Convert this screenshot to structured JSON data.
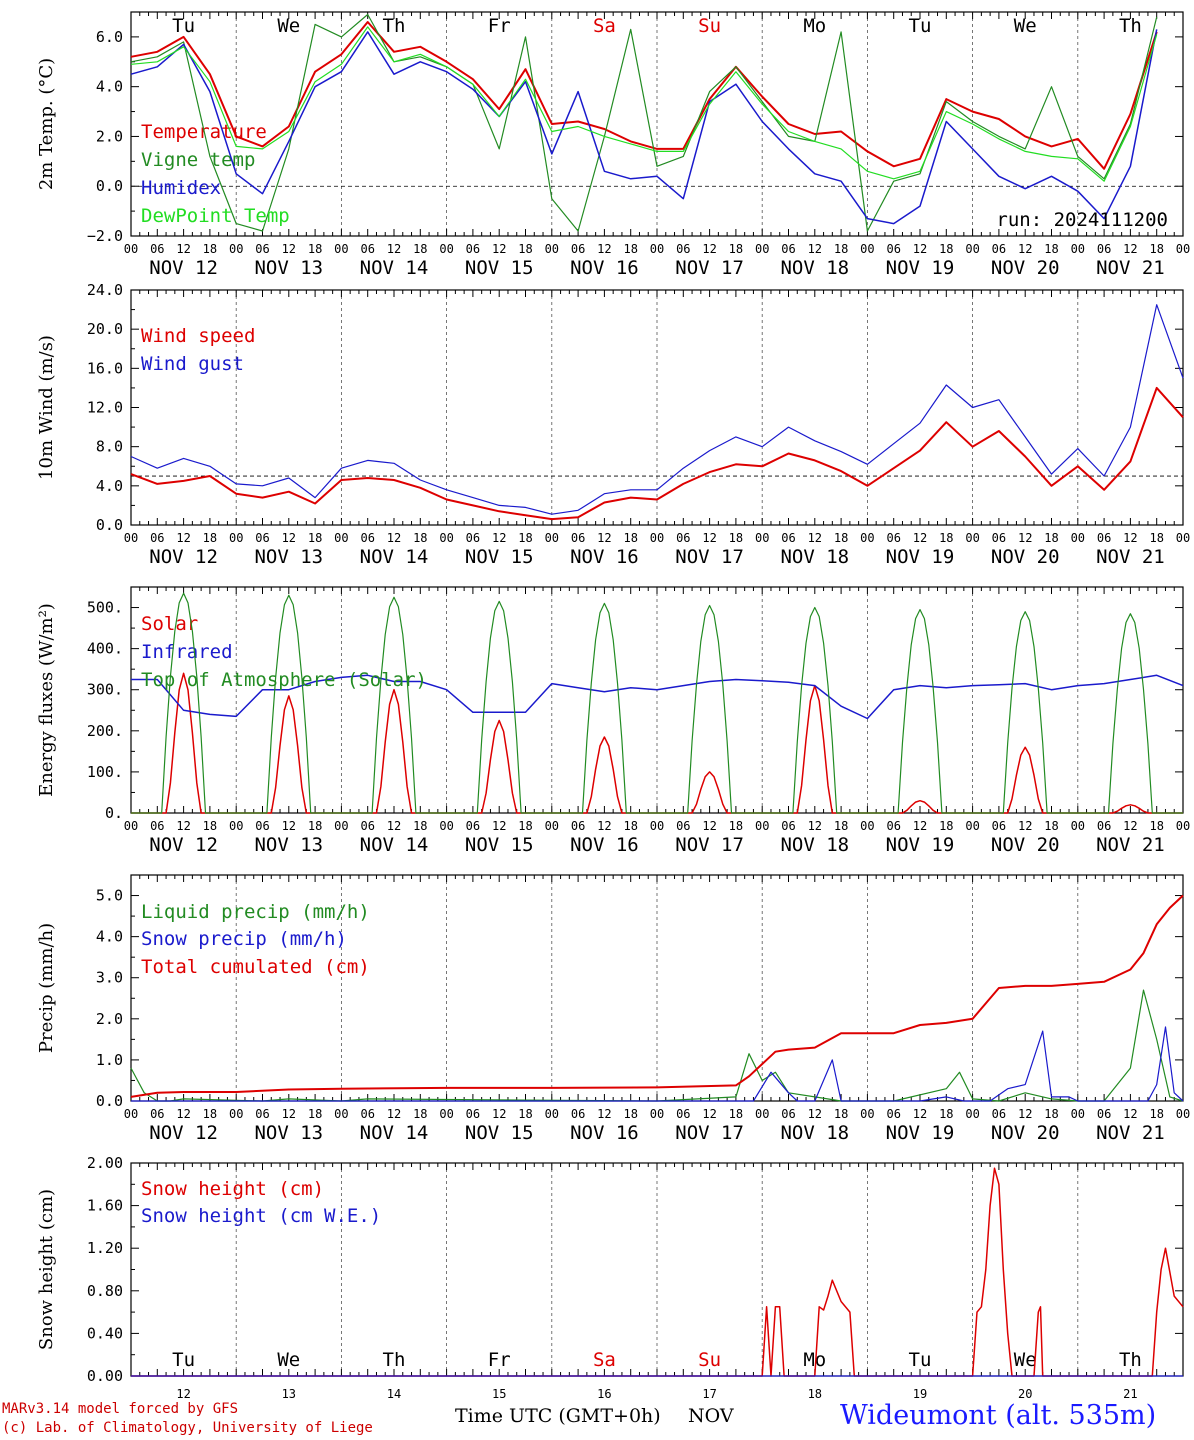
{
  "footer": {
    "model_line": "MARv3.14 model forced by GFS",
    "credit_line": "(c) Lab. of Climatology, University of Liege",
    "time_axis_label": "Time UTC (GMT+0h)",
    "month_label": "NOV",
    "station": "Wideumont (alt. 535m)"
  },
  "time_axis": {
    "hour_ticks": [
      "00",
      "06",
      "12",
      "18"
    ],
    "end_tick": "00",
    "dates": [
      "NOV 12",
      "NOV 13",
      "NOV 14",
      "NOV 15",
      "NOV 16",
      "NOV 17",
      "NOV 18",
      "NOV 19",
      "NOV 20",
      "NOV 21"
    ],
    "day_numbers": [
      "12",
      "13",
      "14",
      "15",
      "16",
      "17",
      "18",
      "19",
      "20",
      "21"
    ],
    "day_names": [
      "Tu",
      "We",
      "Th",
      "Fr",
      "Sa",
      "Su",
      "Mo",
      "Tu",
      "We",
      "Th"
    ],
    "day_name_colors": [
      "#000000",
      "#000000",
      "#000000",
      "#000000",
      "#dd0000",
      "#dd0000",
      "#000000",
      "#000000",
      "#000000",
      "#000000"
    ]
  },
  "chart_data": [
    {
      "type": "line",
      "ylabel": "2m Temp. (°C)",
      "ylim": [
        -2.0,
        7.0
      ],
      "yticks": [
        -2.0,
        0.0,
        2.0,
        4.0,
        6.0
      ],
      "ytick_labels": [
        "−2.0",
        "0.0",
        "2.0",
        "4.0",
        "6.0"
      ],
      "reference_line": 0.0,
      "run_label": "run: 2024111200",
      "show_day_names": true,
      "x_hours": [
        0,
        6,
        12,
        18,
        24,
        30,
        36,
        42,
        48,
        54,
        60,
        66,
        72,
        78,
        84,
        90,
        96,
        102,
        108,
        114,
        120,
        126,
        132,
        138,
        144,
        150,
        156,
        162,
        168,
        174,
        180,
        186,
        192,
        198,
        204,
        210,
        216,
        222,
        228,
        234
      ],
      "series": [
        {
          "name": "Temperature",
          "color": "#dd0000",
          "width": 2.0,
          "values": [
            5.2,
            5.4,
            6.0,
            4.5,
            2.0,
            1.6,
            2.4,
            4.6,
            5.3,
            6.6,
            5.4,
            5.6,
            5.0,
            4.3,
            3.1,
            4.7,
            2.5,
            2.6,
            2.3,
            1.8,
            1.5,
            1.5,
            3.5,
            4.8,
            3.6,
            2.5,
            2.1,
            2.2,
            1.4,
            0.8,
            1.1,
            3.5,
            3.0,
            2.7,
            2.0,
            1.6,
            1.9,
            0.7,
            2.9,
            6.2
          ]
        },
        {
          "name": "Vigne temp",
          "color": "#228b22",
          "width": 1.2,
          "values": [
            5.0,
            5.2,
            5.8,
            1.2,
            -1.5,
            -1.8,
            1.5,
            6.5,
            6.0,
            6.9,
            5.0,
            5.2,
            4.8,
            4.1,
            1.5,
            6.0,
            -0.5,
            -1.8,
            2.0,
            6.3,
            0.8,
            1.2,
            3.8,
            4.8,
            3.4,
            2.0,
            1.8,
            6.2,
            -1.8,
            0.2,
            0.5,
            3.4,
            2.6,
            2.0,
            1.5,
            4.0,
            1.2,
            0.3,
            2.5,
            6.8
          ]
        },
        {
          "name": "Humidex",
          "color": "#1a1acc",
          "width": 1.5,
          "values": [
            4.5,
            4.8,
            5.7,
            3.8,
            0.5,
            -0.3,
            1.8,
            4.0,
            4.6,
            6.2,
            4.5,
            5.0,
            4.6,
            3.9,
            2.8,
            4.2,
            1.3,
            3.8,
            0.6,
            0.3,
            0.4,
            -0.5,
            3.4,
            4.1,
            2.6,
            1.5,
            0.5,
            0.2,
            -1.3,
            -1.5,
            -0.8,
            2.6,
            1.5,
            0.4,
            -0.1,
            0.4,
            -0.2,
            -1.3,
            0.8,
            6.3
          ]
        },
        {
          "name": "DewPoint Temp",
          "color": "#22dd22",
          "width": 1.2,
          "values": [
            4.9,
            5.0,
            5.6,
            4.2,
            1.6,
            1.5,
            2.2,
            4.2,
            4.9,
            6.4,
            5.0,
            5.3,
            4.8,
            4.1,
            2.8,
            4.3,
            2.2,
            2.4,
            2.0,
            1.7,
            1.4,
            1.4,
            3.3,
            4.6,
            3.3,
            2.2,
            1.8,
            1.5,
            0.6,
            0.3,
            0.6,
            3.0,
            2.5,
            1.9,
            1.4,
            1.2,
            1.1,
            0.2,
            2.4,
            6.1
          ]
        }
      ]
    },
    {
      "type": "line",
      "ylabel": "10m Wind (m/s)",
      "ylim": [
        0.0,
        24.0
      ],
      "yticks": [
        0.0,
        4.0,
        8.0,
        12.0,
        16.0,
        20.0,
        24.0
      ],
      "ytick_labels": [
        "0.0",
        "4.0",
        "8.0",
        "12.0",
        "16.0",
        "20.0",
        "24.0"
      ],
      "reference_line": 5.0,
      "show_day_names": false,
      "x_hours": [
        0,
        6,
        12,
        18,
        24,
        30,
        36,
        42,
        48,
        54,
        60,
        66,
        72,
        78,
        84,
        90,
        96,
        102,
        108,
        114,
        120,
        126,
        132,
        138,
        144,
        150,
        156,
        162,
        168,
        174,
        180,
        186,
        192,
        198,
        204,
        210,
        216,
        222,
        228,
        234,
        240
      ],
      "series": [
        {
          "name": "Wind speed",
          "color": "#dd0000",
          "width": 2.0,
          "values": [
            5.2,
            4.2,
            4.5,
            5.0,
            3.2,
            2.8,
            3.4,
            2.2,
            4.6,
            4.8,
            4.6,
            3.8,
            2.6,
            2.0,
            1.4,
            1.0,
            0.6,
            0.8,
            2.3,
            2.8,
            2.6,
            4.2,
            5.4,
            6.2,
            6.0,
            7.3,
            6.6,
            5.5,
            4.0,
            5.8,
            7.6,
            10.5,
            8.0,
            9.6,
            7.0,
            4.0,
            6.0,
            3.6,
            6.5,
            14.0,
            11.0
          ]
        },
        {
          "name": "Wind gust",
          "color": "#1a1acc",
          "width": 1.2,
          "values": [
            7.0,
            5.8,
            6.8,
            6.0,
            4.2,
            4.0,
            4.8,
            2.8,
            5.8,
            6.6,
            6.3,
            4.6,
            3.6,
            2.8,
            2.0,
            1.8,
            1.1,
            1.5,
            3.2,
            3.6,
            3.6,
            5.8,
            7.6,
            9.0,
            8.0,
            10.0,
            8.6,
            7.5,
            6.2,
            8.3,
            10.4,
            14.3,
            12.0,
            12.8,
            9.0,
            5.2,
            7.8,
            5.0,
            10.0,
            22.5,
            15.0
          ]
        }
      ]
    },
    {
      "type": "line",
      "ylabel": "Energy fluxes (W/m²)",
      "ylim": [
        0,
        550
      ],
      "yticks": [
        0,
        100,
        200,
        300,
        400,
        500
      ],
      "ytick_labels": [
        "0.",
        "100.",
        "200.",
        "300.",
        "400.",
        "500."
      ],
      "show_day_names": false,
      "day_peaks_hour_offset": 12,
      "series": [
        {
          "name": "Solar",
          "color": "#dd0000",
          "width": 1.5,
          "daily_peaks": [
            340,
            285,
            300,
            225,
            185,
            100,
            310,
            30,
            160,
            20
          ]
        },
        {
          "name": "Infrared",
          "color": "#1a1acc",
          "width": 1.5,
          "x_hours": [
            0,
            6,
            12,
            18,
            24,
            30,
            36,
            42,
            48,
            54,
            60,
            66,
            72,
            78,
            84,
            90,
            96,
            102,
            108,
            114,
            120,
            126,
            132,
            138,
            144,
            150,
            156,
            162,
            168,
            174,
            180,
            186,
            192,
            198,
            204,
            210,
            216,
            222,
            228,
            234,
            240
          ],
          "values": [
            325,
            325,
            250,
            240,
            235,
            300,
            300,
            320,
            330,
            335,
            320,
            320,
            300,
            245,
            245,
            245,
            315,
            305,
            295,
            305,
            300,
            310,
            320,
            325,
            322,
            318,
            310,
            260,
            230,
            300,
            310,
            305,
            310,
            312,
            315,
            300,
            310,
            315,
            325,
            335,
            310
          ]
        },
        {
          "name": "Top of Atmosphere (Solar)",
          "color": "#228b22",
          "width": 1.2,
          "daily_peaks": [
            535,
            530,
            525,
            515,
            510,
            505,
            500,
            495,
            490,
            485
          ]
        }
      ]
    },
    {
      "type": "line",
      "ylabel": "Precip (mm/h)",
      "ylim": [
        0.0,
        5.5
      ],
      "yticks": [
        0.0,
        1.0,
        2.0,
        3.0,
        4.0,
        5.0
      ],
      "ytick_labels": [
        "0.0",
        "1.0",
        "2.0",
        "3.0",
        "4.0",
        "5.0"
      ],
      "show_day_names": false,
      "series": [
        {
          "name": "Liquid precip (mm/h)",
          "color": "#228b22",
          "width": 1.2,
          "x_hours": [
            0,
            3,
            6,
            9,
            12,
            30,
            36,
            48,
            54,
            120,
            138,
            141,
            144,
            147,
            150,
            156,
            162,
            168,
            174,
            186,
            189,
            192,
            198,
            204,
            210,
            216,
            222,
            228,
            231,
            234,
            237,
            240
          ],
          "values": [
            0.8,
            0.2,
            0.0,
            0.0,
            0.05,
            0.0,
            0.05,
            0.0,
            0.05,
            0.0,
            0.1,
            1.15,
            0.5,
            0.7,
            0.2,
            0.1,
            0.0,
            0.0,
            0.0,
            0.3,
            0.7,
            0.05,
            0.0,
            0.2,
            0.05,
            0.0,
            0.0,
            0.8,
            2.7,
            1.5,
            0.1,
            0.0
          ]
        },
        {
          "name": "Snow precip (mm/h)",
          "color": "#1a1acc",
          "width": 1.2,
          "x_hours": [
            0,
            138,
            142,
            146,
            150,
            152,
            156,
            160,
            162,
            174,
            180,
            186,
            190,
            192,
            196,
            200,
            204,
            208,
            210,
            214,
            216,
            232,
            234,
            236,
            238,
            240
          ],
          "values": [
            0.0,
            0.0,
            0.0,
            0.7,
            0.2,
            0.0,
            0.0,
            1.0,
            0.0,
            0.0,
            0.0,
            0.1,
            0.0,
            0.0,
            0.0,
            0.3,
            0.4,
            1.7,
            0.1,
            0.1,
            0.0,
            0.0,
            0.4,
            1.8,
            0.2,
            0.0
          ]
        },
        {
          "name": "Total cumulated (cm)",
          "color": "#dd0000",
          "width": 2.0,
          "x_hours": [
            0,
            6,
            12,
            24,
            36,
            48,
            72,
            96,
            120,
            138,
            141,
            144,
            147,
            150,
            156,
            162,
            168,
            174,
            180,
            186,
            192,
            198,
            204,
            210,
            216,
            222,
            228,
            231,
            234,
            237,
            240
          ],
          "values": [
            0.1,
            0.2,
            0.22,
            0.22,
            0.28,
            0.3,
            0.32,
            0.32,
            0.33,
            0.38,
            0.6,
            0.9,
            1.2,
            1.25,
            1.3,
            1.65,
            1.65,
            1.65,
            1.85,
            1.9,
            2.0,
            2.75,
            2.8,
            2.8,
            2.85,
            2.9,
            3.2,
            3.6,
            4.3,
            4.7,
            5.0
          ]
        }
      ]
    },
    {
      "type": "line",
      "ylabel": "Snow height (cm)",
      "ylim": [
        0.0,
        2.0
      ],
      "yticks": [
        0.0,
        0.4,
        0.8,
        1.2,
        1.6,
        2.0
      ],
      "ytick_labels": [
        "0.00",
        "0.40",
        "0.80",
        "1.20",
        "1.60",
        "2.00"
      ],
      "show_day_names": true,
      "day_names_position": "bottom",
      "series": [
        {
          "name": "Snow height (cm)",
          "color": "#dd0000",
          "width": 1.5,
          "x_hours": [
            0,
            143,
            144,
            145,
            146,
            147,
            148,
            149,
            150,
            155,
            156,
            157,
            158,
            159,
            160,
            162,
            164,
            165,
            180,
            190,
            192,
            193,
            194,
            195,
            196,
            197,
            198,
            199,
            200,
            201,
            206,
            207,
            207.5,
            208,
            209,
            210,
            232,
            233,
            234,
            235,
            236,
            238,
            240
          ],
          "values": [
            0,
            0,
            0,
            0.65,
            0,
            0.65,
            0.65,
            0,
            0,
            0,
            0,
            0.65,
            0.62,
            0.75,
            0.9,
            0.7,
            0.6,
            0,
            0,
            0,
            0,
            0.6,
            0.65,
            1.0,
            1.6,
            1.95,
            1.8,
            1.0,
            0.4,
            0,
            0,
            0.6,
            0.65,
            0,
            0,
            0,
            0,
            0,
            0.6,
            1.0,
            1.2,
            0.75,
            0.65
          ]
        },
        {
          "name": "Snow height (cm W.E.)",
          "color": "#1a1acc",
          "width": 1.2,
          "x_hours": [
            0,
            240
          ],
          "values": [
            0,
            0
          ]
        }
      ]
    }
  ]
}
